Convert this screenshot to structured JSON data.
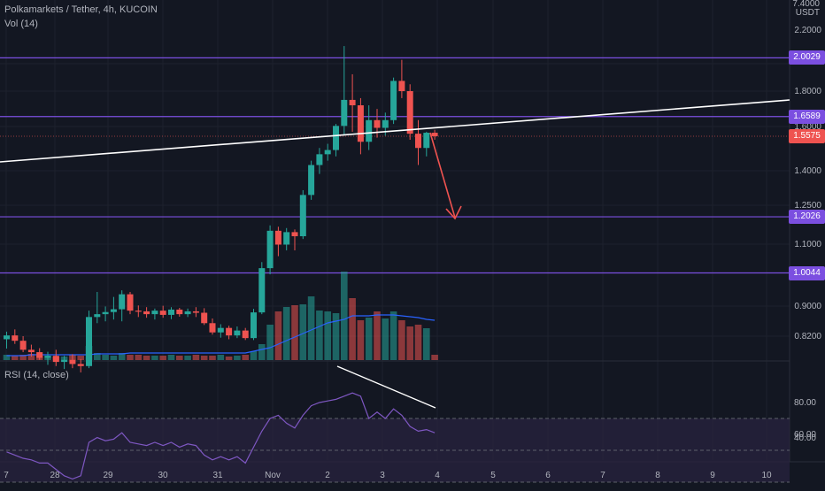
{
  "header": {
    "title": "Polkamarkets / Tether, 4h, KUCOIN",
    "volume_label": "Vol (14)",
    "rsi_label": "RSI (14, close)",
    "currency_top": "7.4000",
    "currency": "USDT"
  },
  "colors": {
    "background": "#131722",
    "grid": "#1e222d",
    "up": "#26a69a",
    "down": "#ef5350",
    "level_line": "#7b4fe0",
    "trendline": "#ffffff",
    "arrow": "#ef5350",
    "volume_ma": "#2962ff",
    "rsi_line": "#7e57c2",
    "rsi_band": "#2a2440",
    "axis_text": "#b2b5be"
  },
  "chart_data": [
    {
      "type": "candlestick",
      "title": "Polkamarkets / Tether, 4h, KUCOIN",
      "scale": "log",
      "y_axis_ticks": [
        "2.2000",
        "1.8000",
        "1.6000",
        "1.4000",
        "1.2500",
        "1.1000",
        "0.9000",
        "0.8200"
      ],
      "x_axis_ticks": [
        "7",
        "28",
        "29",
        "30",
        "31",
        "Nov",
        "2",
        "3",
        "4",
        "5",
        "6",
        "7",
        "8",
        "9",
        "10"
      ],
      "price_levels": [
        {
          "label": "2.0029",
          "value": 2.0029
        },
        {
          "label": "1.6589",
          "value": 1.6589
        },
        {
          "label": "1.2026",
          "value": 1.2026
        },
        {
          "label": "1.0044",
          "value": 1.0044
        }
      ],
      "last_price": {
        "label": "1.5575",
        "value": 1.5575
      },
      "candles": [
        {
          "d": "27 00:00",
          "o": 0.812,
          "h": 0.832,
          "l": 0.788,
          "c": 0.822
        },
        {
          "d": "27 04:00",
          "o": 0.822,
          "h": 0.838,
          "l": 0.8,
          "c": 0.808
        },
        {
          "d": "27 08:00",
          "o": 0.808,
          "h": 0.82,
          "l": 0.779,
          "c": 0.785
        },
        {
          "d": "27 12:00",
          "o": 0.785,
          "h": 0.798,
          "l": 0.768,
          "c": 0.779
        },
        {
          "d": "27 16:00",
          "o": 0.779,
          "h": 0.789,
          "l": 0.76,
          "c": 0.765
        },
        {
          "d": "27 20:00",
          "o": 0.765,
          "h": 0.78,
          "l": 0.748,
          "c": 0.77
        },
        {
          "d": "28 00:00",
          "o": 0.77,
          "h": 0.785,
          "l": 0.745,
          "c": 0.755
        },
        {
          "d": "28 04:00",
          "o": 0.755,
          "h": 0.77,
          "l": 0.738,
          "c": 0.76
        },
        {
          "d": "28 08:00",
          "o": 0.76,
          "h": 0.774,
          "l": 0.74,
          "c": 0.75
        },
        {
          "d": "28 12:00",
          "o": 0.75,
          "h": 0.762,
          "l": 0.73,
          "c": 0.745
        },
        {
          "d": "28 16:00",
          "o": 0.745,
          "h": 0.89,
          "l": 0.74,
          "c": 0.872
        },
        {
          "d": "28 20:00",
          "o": 0.872,
          "h": 0.945,
          "l": 0.855,
          "c": 0.88
        },
        {
          "d": "29 00:00",
          "o": 0.88,
          "h": 0.902,
          "l": 0.86,
          "c": 0.886
        },
        {
          "d": "29 04:00",
          "o": 0.886,
          "h": 0.93,
          "l": 0.865,
          "c": 0.894
        },
        {
          "d": "29 08:00",
          "o": 0.894,
          "h": 0.95,
          "l": 0.86,
          "c": 0.938
        },
        {
          "d": "29 12:00",
          "o": 0.938,
          "h": 0.945,
          "l": 0.88,
          "c": 0.89
        },
        {
          "d": "29 16:00",
          "o": 0.89,
          "h": 0.905,
          "l": 0.872,
          "c": 0.888
        },
        {
          "d": "29 20:00",
          "o": 0.888,
          "h": 0.9,
          "l": 0.87,
          "c": 0.88
        },
        {
          "d": "30 00:00",
          "o": 0.88,
          "h": 0.896,
          "l": 0.865,
          "c": 0.89
        },
        {
          "d": "30 04:00",
          "o": 0.89,
          "h": 0.904,
          "l": 0.87,
          "c": 0.878
        },
        {
          "d": "30 08:00",
          "o": 0.878,
          "h": 0.9,
          "l": 0.866,
          "c": 0.893
        },
        {
          "d": "30 12:00",
          "o": 0.893,
          "h": 0.898,
          "l": 0.873,
          "c": 0.88
        },
        {
          "d": "30 16:00",
          "o": 0.88,
          "h": 0.896,
          "l": 0.872,
          "c": 0.888
        },
        {
          "d": "30 20:00",
          "o": 0.888,
          "h": 0.9,
          "l": 0.872,
          "c": 0.884
        },
        {
          "d": "31 00:00",
          "o": 0.884,
          "h": 0.897,
          "l": 0.85,
          "c": 0.855
        },
        {
          "d": "31 04:00",
          "o": 0.855,
          "h": 0.868,
          "l": 0.824,
          "c": 0.83
        },
        {
          "d": "31 08:00",
          "o": 0.83,
          "h": 0.852,
          "l": 0.816,
          "c": 0.842
        },
        {
          "d": "31 12:00",
          "o": 0.842,
          "h": 0.848,
          "l": 0.812,
          "c": 0.822
        },
        {
          "d": "31 16:00",
          "o": 0.822,
          "h": 0.846,
          "l": 0.815,
          "c": 0.835
        },
        {
          "d": "31 20:00",
          "o": 0.835,
          "h": 0.842,
          "l": 0.81,
          "c": 0.815
        },
        {
          "d": "Nov 1 00:00",
          "o": 0.815,
          "h": 0.895,
          "l": 0.81,
          "c": 0.885
        },
        {
          "d": "Nov 1 04:00",
          "o": 0.885,
          "h": 1.04,
          "l": 0.88,
          "c": 1.02
        },
        {
          "d": "Nov 1 08:00",
          "o": 1.02,
          "h": 1.17,
          "l": 1.0,
          "c": 1.15
        },
        {
          "d": "Nov 1 12:00",
          "o": 1.15,
          "h": 1.165,
          "l": 1.06,
          "c": 1.1
        },
        {
          "d": "Nov 1 16:00",
          "o": 1.1,
          "h": 1.16,
          "l": 1.08,
          "c": 1.145
        },
        {
          "d": "Nov 1 20:00",
          "o": 1.145,
          "h": 1.155,
          "l": 1.08,
          "c": 1.13
        },
        {
          "d": "Nov 2 00:00",
          "o": 1.13,
          "h": 1.31,
          "l": 1.12,
          "c": 1.29
        },
        {
          "d": "Nov 2 04:00",
          "o": 1.29,
          "h": 1.44,
          "l": 1.27,
          "c": 1.42
        },
        {
          "d": "Nov 2 08:00",
          "o": 1.42,
          "h": 1.5,
          "l": 1.38,
          "c": 1.47
        },
        {
          "d": "Nov 2 12:00",
          "o": 1.47,
          "h": 1.52,
          "l": 1.44,
          "c": 1.49
        },
        {
          "d": "Nov 2 16:00",
          "o": 1.49,
          "h": 1.62,
          "l": 1.46,
          "c": 1.61
        },
        {
          "d": "Nov 2 20:00",
          "o": 1.61,
          "h": 2.08,
          "l": 1.56,
          "c": 1.75
        },
        {
          "d": "Nov 3 00:00",
          "o": 1.75,
          "h": 1.9,
          "l": 1.58,
          "c": 1.72
        },
        {
          "d": "Nov 3 04:00",
          "o": 1.72,
          "h": 1.76,
          "l": 1.47,
          "c": 1.53
        },
        {
          "d": "Nov 3 08:00",
          "o": 1.53,
          "h": 1.72,
          "l": 1.49,
          "c": 1.64
        },
        {
          "d": "Nov 3 12:00",
          "o": 1.64,
          "h": 1.7,
          "l": 1.55,
          "c": 1.6
        },
        {
          "d": "Nov 3 16:00",
          "o": 1.6,
          "h": 1.68,
          "l": 1.56,
          "c": 1.64
        },
        {
          "d": "Nov 3 20:00",
          "o": 1.64,
          "h": 1.88,
          "l": 1.62,
          "c": 1.86
        },
        {
          "d": "Nov 4 00:00",
          "o": 1.86,
          "h": 1.99,
          "l": 1.76,
          "c": 1.8
        },
        {
          "d": "Nov 4 04:00",
          "o": 1.8,
          "h": 1.84,
          "l": 1.54,
          "c": 1.57
        },
        {
          "d": "Nov 4 08:00",
          "o": 1.57,
          "h": 1.64,
          "l": 1.42,
          "c": 1.5
        },
        {
          "d": "Nov 4 12:00",
          "o": 1.5,
          "h": 1.58,
          "l": 1.46,
          "c": 1.575
        },
        {
          "d": "Nov 4 16:00",
          "o": 1.575,
          "h": 1.59,
          "l": 1.54,
          "c": 1.5575
        }
      ]
    },
    {
      "type": "bar",
      "title": "Vol (14)",
      "note": "volume in relative units; no volume axis printed",
      "values": [
        6,
        5,
        6,
        7,
        5,
        5,
        4,
        4,
        6,
        5,
        16,
        8,
        6,
        5,
        8,
        6,
        6,
        5,
        5,
        5,
        6,
        5,
        5,
        6,
        5,
        5,
        6,
        4,
        5,
        6,
        10,
        18,
        40,
        55,
        60,
        62,
        63,
        72,
        56,
        55,
        53,
        100,
        70,
        45,
        48,
        55,
        47,
        55,
        45,
        38,
        40,
        36,
        6
      ],
      "ma_values": [
        5,
        5,
        5,
        6,
        6,
        6,
        6,
        6,
        6,
        6,
        6,
        7,
        7,
        7,
        7,
        8,
        8,
        8,
        8,
        8,
        8,
        8,
        8,
        8,
        8,
        8,
        8,
        8,
        8,
        8,
        10,
        12,
        14,
        18,
        22,
        26,
        30,
        34,
        38,
        42,
        44,
        46,
        50,
        50,
        50,
        51,
        51,
        51,
        50,
        49,
        48,
        46,
        45
      ]
    },
    {
      "type": "line",
      "title": "RSI (14, close)",
      "y_axis_ticks": [
        "80.00",
        "60.00",
        "40.00"
      ],
      "band": [
        30,
        70
      ],
      "midline": 50,
      "values": [
        49,
        47,
        45,
        44,
        42,
        42,
        38,
        34,
        32,
        34,
        55,
        58,
        56,
        57,
        61,
        55,
        54,
        53,
        55,
        53,
        55,
        52,
        54,
        53,
        47,
        44,
        46,
        44,
        46,
        42,
        52,
        62,
        70,
        72,
        67,
        64,
        72,
        78,
        80,
        81,
        82,
        84,
        86,
        84,
        70,
        74,
        70,
        76,
        72,
        65,
        62,
        63,
        61
      ]
    }
  ]
}
